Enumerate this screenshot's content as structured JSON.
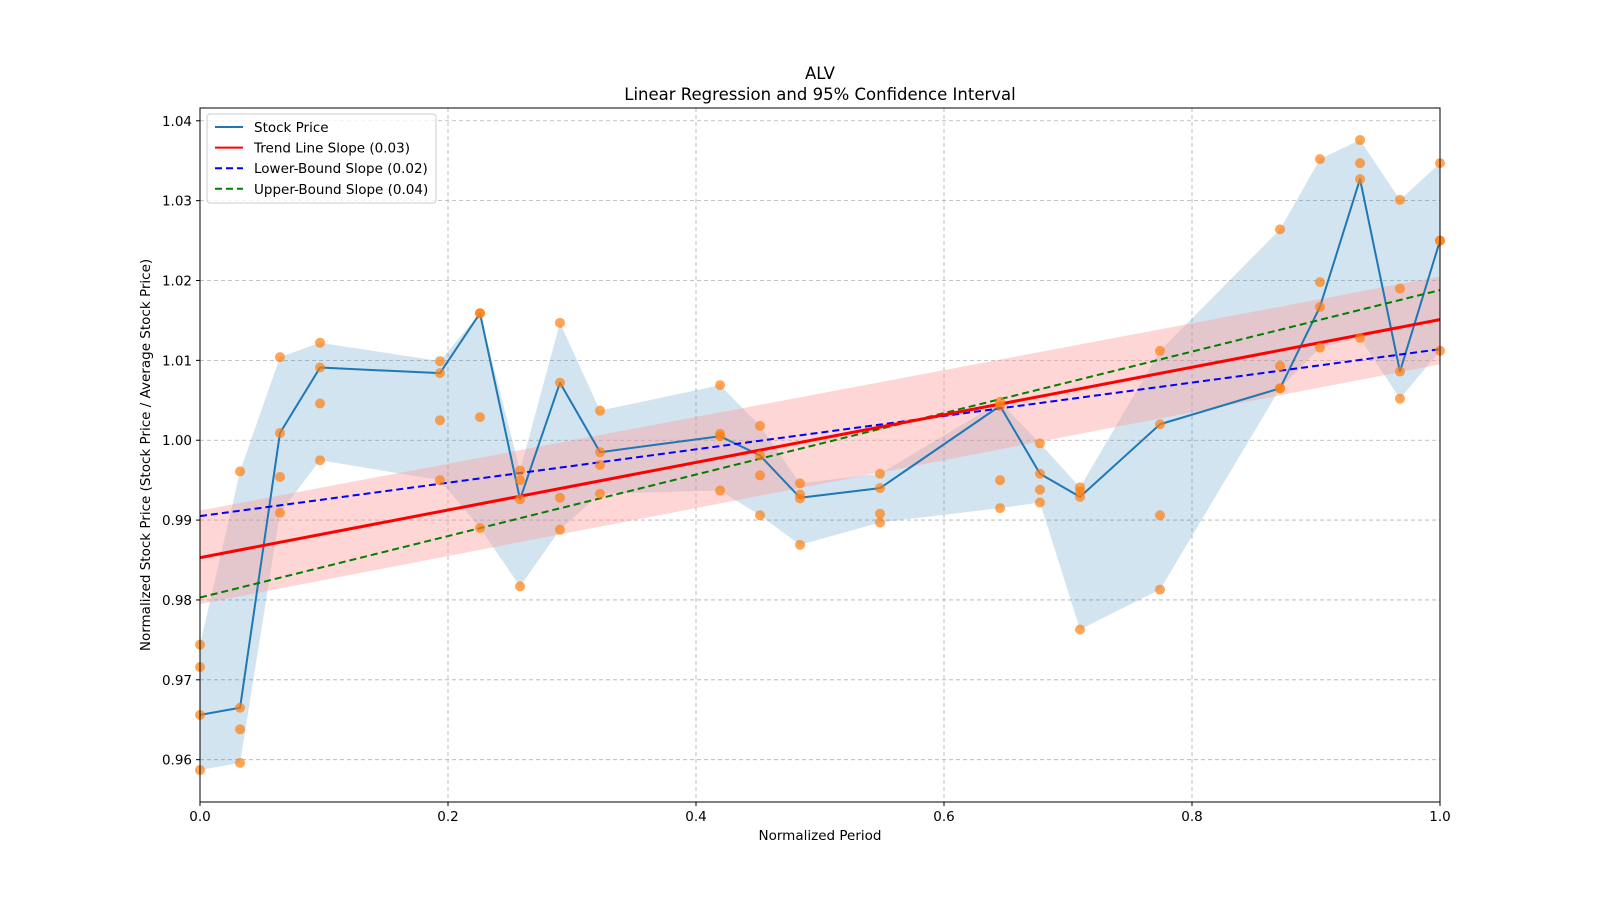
{
  "chart_data": {
    "type": "line",
    "title": "ALV",
    "subtitle": "Linear Regression and 95% Confidence Interval",
    "xlabel": "Normalized Period",
    "ylabel": "Normalized Stock Price (Stock Price / Average Stock Price)",
    "xlim": [
      0.0,
      1.0
    ],
    "ylim": [
      0.9547,
      1.0416
    ],
    "xticks": [
      0.0,
      0.2,
      0.4,
      0.6,
      0.8,
      1.0
    ],
    "xtick_labels": [
      "0.0",
      "0.2",
      "0.4",
      "0.6",
      "0.8",
      "1.0"
    ],
    "yticks": [
      0.96,
      0.97,
      0.98,
      0.99,
      1.0,
      1.01,
      1.02,
      1.03,
      1.04
    ],
    "ytick_labels": [
      "0.96",
      "0.97",
      "0.98",
      "0.99",
      "1.00",
      "1.01",
      "1.02",
      "1.03",
      "1.04"
    ],
    "grid": true,
    "legend_position": "top-left",
    "legend": [
      {
        "label": "Stock Price",
        "color": "#1f77b4",
        "style": "solid"
      },
      {
        "label": "Trend Line Slope (0.03)",
        "color": "#ff0000",
        "style": "solid"
      },
      {
        "label": "Lower-Bound Slope (0.02)",
        "color": "#0000ff",
        "style": "dashed"
      },
      {
        "label": "Upper-Bound Slope (0.04)",
        "color": "#008000",
        "style": "dashed"
      }
    ],
    "colors": {
      "price_line": "#1f77b4",
      "price_band": "#1f77b4",
      "scatter": "#ff7f0e",
      "trend": "#ff0000",
      "lower": "#0000ff",
      "upper": "#008000",
      "ci_band": "#ff9999"
    },
    "x": [
      0.0,
      0.0323,
      0.0645,
      0.0968,
      0.1935,
      0.2258,
      0.2581,
      0.2903,
      0.3226,
      0.4194,
      0.4516,
      0.4839,
      0.5484,
      0.6452,
      0.6774,
      0.7097,
      0.7742,
      0.871,
      0.9032,
      0.9355,
      0.9677,
      1.0
    ],
    "stock_price": [
      0.9656,
      0.9665,
      1.0009,
      1.0091,
      1.0084,
      1.0159,
      0.9926,
      1.0072,
      0.9985,
      1.0005,
      0.9981,
      0.9928,
      0.994,
      1.0043,
      0.9958,
      0.9929,
      1.002,
      1.0065,
      1.0167,
      1.0327,
      1.0086,
      1.025
    ],
    "scatter_points": [
      [
        0.9744,
        0.9716,
        0.9656,
        0.9587
      ],
      [
        0.9961,
        0.9665,
        0.9638,
        0.9596
      ],
      [
        1.0104,
        1.0009,
        0.9954,
        0.9909
      ],
      [
        1.0122,
        1.0091,
        1.0046,
        0.9975
      ],
      [
        1.0099,
        1.0084,
        1.0025,
        0.995
      ],
      [
        1.0159,
        1.0159,
        1.0029,
        0.989
      ],
      [
        0.9962,
        0.995,
        0.9926,
        0.9817
      ],
      [
        1.0147,
        1.0072,
        0.9928,
        0.9888
      ],
      [
        1.0037,
        0.9985,
        0.9969,
        0.9933
      ],
      [
        1.0069,
        1.0008,
        1.0005,
        0.9937
      ],
      [
        1.0018,
        0.9981,
        0.9956,
        0.9906
      ],
      [
        0.9946,
        0.9932,
        0.9927,
        0.9869
      ],
      [
        0.9958,
        0.994,
        0.9908,
        0.9897
      ],
      [
        1.0048,
        1.0043,
        0.995,
        0.9915
      ],
      [
        0.9996,
        0.9958,
        0.9938,
        0.9922
      ],
      [
        0.9941,
        0.9936,
        0.9929,
        0.9763
      ],
      [
        1.0112,
        1.002,
        0.9906,
        0.9813
      ],
      [
        1.0264,
        1.0093,
        1.0065,
        1.0065
      ],
      [
        1.0352,
        1.0198,
        1.0167,
        1.0116
      ],
      [
        1.0376,
        1.0347,
        1.0327,
        1.0128
      ],
      [
        1.0301,
        1.019,
        1.0086,
        1.0052
      ],
      [
        1.0347,
        1.025,
        1.025,
        1.0112
      ]
    ],
    "trend_line": {
      "x": [
        0.0,
        1.0
      ],
      "y": [
        0.9853,
        1.0151
      ],
      "slope": 0.03
    },
    "lower_bound_line": {
      "x": [
        0.0,
        1.0
      ],
      "y": [
        0.9905,
        1.0114
      ],
      "slope": 0.02
    },
    "upper_bound_line": {
      "x": [
        0.0,
        1.0
      ],
      "y": [
        0.9803,
        1.0188
      ],
      "slope": 0.04
    },
    "ci_band": {
      "x": [
        0.0,
        1.0
      ],
      "lower": [
        0.9795,
        1.0095
      ],
      "upper": [
        0.9912,
        1.0205
      ]
    }
  }
}
